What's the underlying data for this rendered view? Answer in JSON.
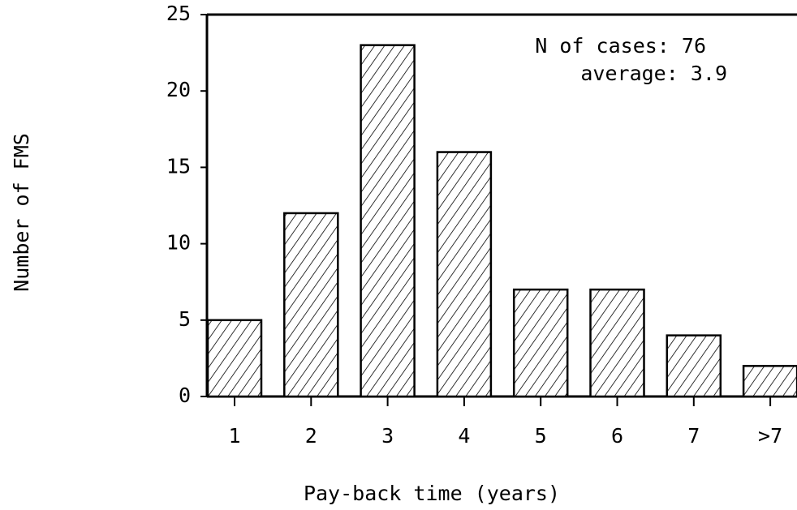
{
  "chart_data": {
    "type": "bar",
    "x_label": "Pay-back time (years)",
    "y_label": "Number of FMS",
    "annotations": [
      "N of cases: 76",
      "average: 3.9"
    ],
    "categories": [
      "1",
      "2",
      "3",
      "4",
      "5",
      "6",
      "7",
      ">7"
    ],
    "values": [
      5,
      12,
      23,
      16,
      7,
      7,
      4,
      2
    ],
    "ylim": [
      0,
      25
    ],
    "yticks": [
      0,
      5,
      10,
      15,
      20,
      25
    ],
    "hatch": true
  }
}
